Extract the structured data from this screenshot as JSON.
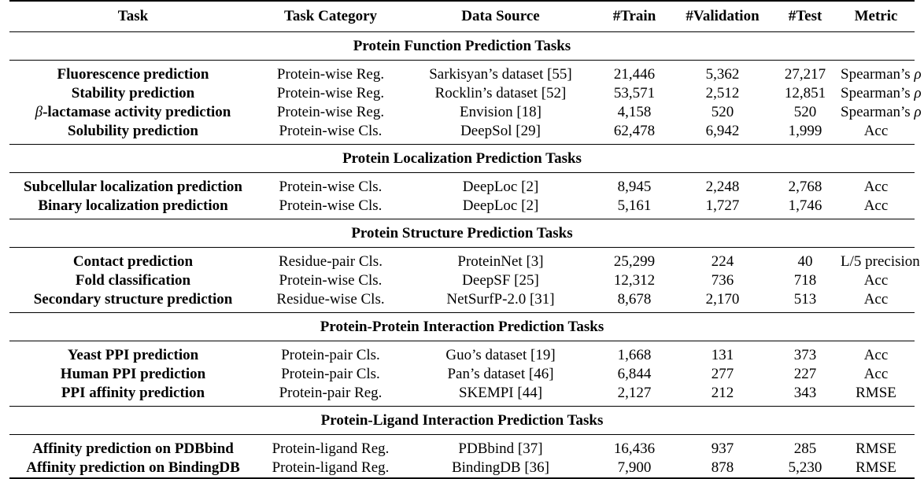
{
  "headers": [
    "Task",
    "Task Category",
    "Data Source",
    "#Train",
    "#Validation",
    "#Test",
    "Metric"
  ],
  "sections": [
    {
      "title": "Protein Function Prediction Tasks",
      "rows": [
        [
          "Fluorescence prediction",
          "Protein-wise Reg.",
          "Sarkisyan’s dataset [55]",
          "21,446",
          "5,362",
          "27,217",
          "Spearman’s ρ"
        ],
        [
          "Stability prediction",
          "Protein-wise Reg.",
          "Rocklin’s dataset [52]",
          "53,571",
          "2,512",
          "12,851",
          "Spearman’s ρ"
        ],
        [
          "β-lactamase activity prediction",
          "Protein-wise Reg.",
          "Envision [18]",
          "4,158",
          "520",
          "520",
          "Spearman’s ρ"
        ],
        [
          "Solubility prediction",
          "Protein-wise Cls.",
          "DeepSol [29]",
          "62,478",
          "6,942",
          "1,999",
          "Acc"
        ]
      ]
    },
    {
      "title": "Protein Localization Prediction Tasks",
      "rows": [
        [
          "Subcellular localization prediction",
          "Protein-wise Cls.",
          "DeepLoc [2]",
          "8,945",
          "2,248",
          "2,768",
          "Acc"
        ],
        [
          "Binary localization prediction",
          "Protein-wise Cls.",
          "DeepLoc [2]",
          "5,161",
          "1,727",
          "1,746",
          "Acc"
        ]
      ]
    },
    {
      "title": "Protein Structure Prediction Tasks",
      "rows": [
        [
          "Contact prediction",
          "Residue-pair Cls.",
          "ProteinNet [3]",
          "25,299",
          "224",
          "40",
          "L/5 precision"
        ],
        [
          "Fold classification",
          "Protein-wise Cls.",
          "DeepSF [25]",
          "12,312",
          "736",
          "718",
          "Acc"
        ],
        [
          "Secondary structure prediction",
          "Residue-wise Cls.",
          "NetSurfP-2.0 [31]",
          "8,678",
          "2,170",
          "513",
          "Acc"
        ]
      ]
    },
    {
      "title": "Protein-Protein Interaction Prediction Tasks",
      "rows": [
        [
          "Yeast PPI prediction",
          "Protein-pair Cls.",
          "Guo’s dataset [19]",
          "1,668",
          "131",
          "373",
          "Acc"
        ],
        [
          "Human PPI prediction",
          "Protein-pair Cls.",
          "Pan’s dataset [46]",
          "6,844",
          "277",
          "227",
          "Acc"
        ],
        [
          "PPI affinity prediction",
          "Protein-pair Reg.",
          "SKEMPI [44]",
          "2,127",
          "212",
          "343",
          "RMSE"
        ]
      ]
    },
    {
      "title": "Protein-Ligand Interaction Prediction Tasks",
      "rows": [
        [
          "Affinity prediction on PDBbind",
          "Protein-ligand Reg.",
          "PDBbind [37]",
          "16,436",
          "937",
          "285",
          "RMSE"
        ],
        [
          "Affinity prediction on BindingDB",
          "Protein-ligand Reg.",
          "BindingDB [36]",
          "7,900",
          "878",
          "5,230",
          "RMSE"
        ]
      ]
    }
  ]
}
